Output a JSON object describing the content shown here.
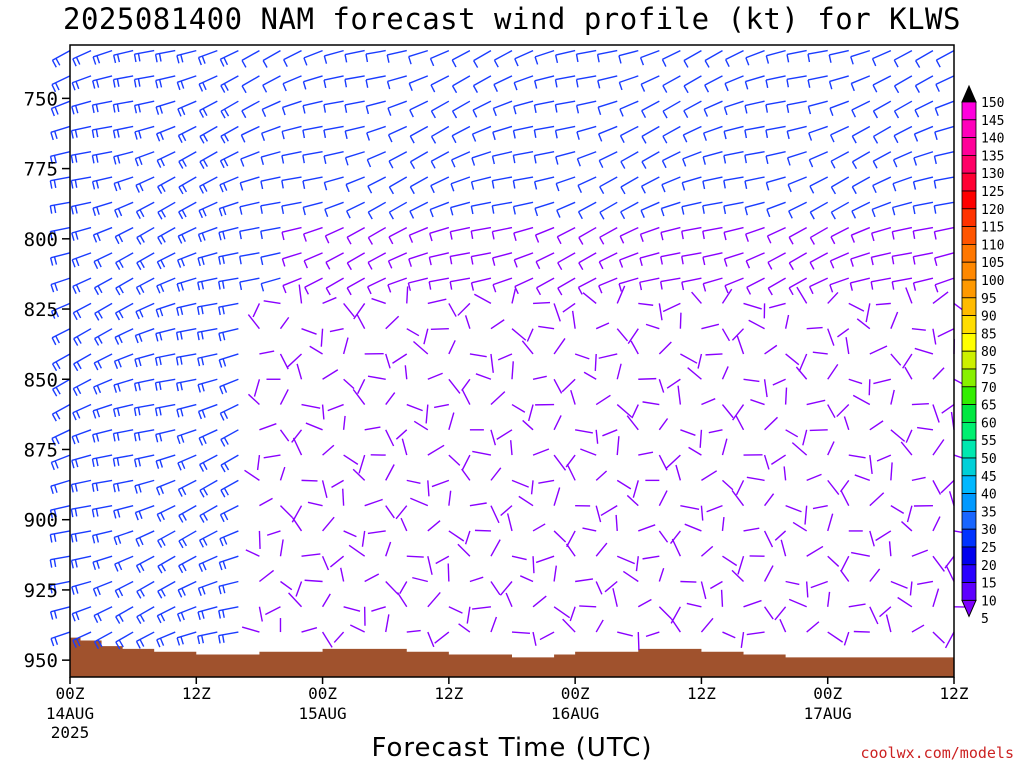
{
  "title": "2025081400 NAM forecast wind profile (kt) for KLWS",
  "credit": "coolwx.com/models",
  "chart_data": {
    "type": "wind-barb-time-height",
    "title": "2025081400 NAM forecast wind profile (kt) for KLWS",
    "xlabel": "Forecast Time (UTC)",
    "ylabel": "",
    "x_range_hours": [
      0,
      84
    ],
    "x_ticks": [
      {
        "hour": 0,
        "label": "00Z",
        "sub": "14AUG",
        "sub2": "2025"
      },
      {
        "hour": 12,
        "label": "12Z",
        "sub": "",
        "sub2": ""
      },
      {
        "hour": 24,
        "label": "00Z",
        "sub": "15AUG",
        "sub2": ""
      },
      {
        "hour": 36,
        "label": "12Z",
        "sub": "",
        "sub2": ""
      },
      {
        "hour": 48,
        "label": "00Z",
        "sub": "16AUG",
        "sub2": ""
      },
      {
        "hour": 60,
        "label": "12Z",
        "sub": "",
        "sub2": ""
      },
      {
        "hour": 72,
        "label": "00Z",
        "sub": "17AUG",
        "sub2": ""
      },
      {
        "hour": 84,
        "label": "12Z",
        "sub": "",
        "sub2": ""
      }
    ],
    "y_range_hPa": [
      731,
      956
    ],
    "y_ticks": [
      750,
      775,
      800,
      825,
      850,
      875,
      900,
      925,
      950
    ],
    "colorbar": {
      "levels": [
        5,
        10,
        15,
        20,
        25,
        30,
        35,
        40,
        45,
        50,
        55,
        60,
        65,
        70,
        75,
        80,
        85,
        90,
        95,
        100,
        105,
        110,
        115,
        120,
        125,
        130,
        135,
        140,
        145,
        150
      ],
      "colors": [
        "#7f00ff",
        "#5e00ff",
        "#2a00ff",
        "#0000ee",
        "#0033ff",
        "#1966ff",
        "#0099ff",
        "#00b8ff",
        "#00d0d8",
        "#00e8b0",
        "#00f070",
        "#00e840",
        "#33ee00",
        "#88f000",
        "#ccf000",
        "#ffff00",
        "#ffdd00",
        "#ffbb00",
        "#ff9900",
        "#ff8800",
        "#ff7700",
        "#ff5500",
        "#ff3300",
        "#ff0000",
        "#ff0033",
        "#ff0066",
        "#ff0099",
        "#ff00bb",
        "#ff00dd",
        "#000000"
      ]
    },
    "terrain_color": "#a0522d",
    "terrain_surface_hPa": [
      [
        0,
        942
      ],
      [
        1,
        943
      ],
      [
        3,
        945
      ],
      [
        5,
        946
      ],
      [
        8,
        947
      ],
      [
        12,
        948
      ],
      [
        16,
        948
      ],
      [
        18,
        947
      ],
      [
        22,
        947
      ],
      [
        24,
        946
      ],
      [
        28,
        946
      ],
      [
        32,
        947
      ],
      [
        36,
        948
      ],
      [
        42,
        949
      ],
      [
        46,
        948
      ],
      [
        48,
        947
      ],
      [
        54,
        946
      ],
      [
        60,
        947
      ],
      [
        64,
        948
      ],
      [
        68,
        949
      ],
      [
        72,
        949
      ],
      [
        76,
        949
      ],
      [
        80,
        949
      ],
      [
        84,
        949
      ]
    ],
    "barb_color_low": "#8a00ff",
    "barb_color_high": "#1a3cff"
  }
}
